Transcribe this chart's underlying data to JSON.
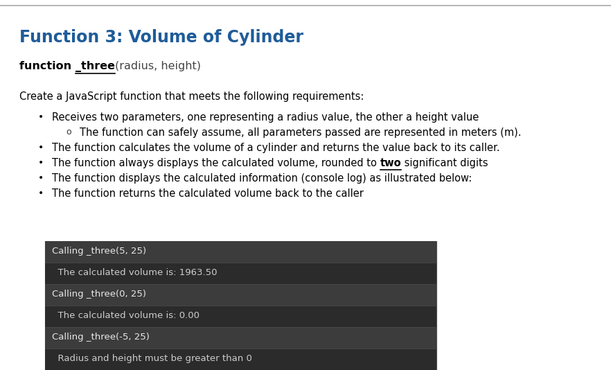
{
  "title": "Function 3: Volume of Cylinder",
  "title_color": "#1F5C99",
  "bg_color": "#ffffff",
  "top_border_color": "#aaaaaa",
  "intro_text": "Create a JavaScript function that meets the following requirements:",
  "bullets": [
    "Receives two parameters, one representing a radius value, the other a height value",
    "The function calculates the volume of a cylinder and returns the value back to its caller.",
    "The function always displays the calculated volume, rounded to two significant digits",
    "The function displays the calculated information (console log) as illustrated below:",
    "The function returns the calculated volume back to the caller"
  ],
  "sub_bullet": "The function can safely assume, all parameters passed are represented in meters (m).",
  "code_lines": [
    {
      "text": "Calling _three(5, 25)",
      "style": "header"
    },
    {
      "text": "  The calculated volume is: 1963.50",
      "style": "output"
    },
    {
      "text": "Calling _three(0, 25)",
      "style": "header"
    },
    {
      "text": "  The calculated volume is: 0.00",
      "style": "output"
    },
    {
      "text": "Calling _three(-5, 25)",
      "style": "header"
    },
    {
      "text": "  Radius and height must be greater than 0",
      "style": "output"
    }
  ],
  "code_header_color": "#e8e8e8",
  "code_output_color": "#cccccc",
  "code_header_bg": "#3c3c3c",
  "code_output_bg": "#2b2b2b",
  "code_border_color": "#555555"
}
